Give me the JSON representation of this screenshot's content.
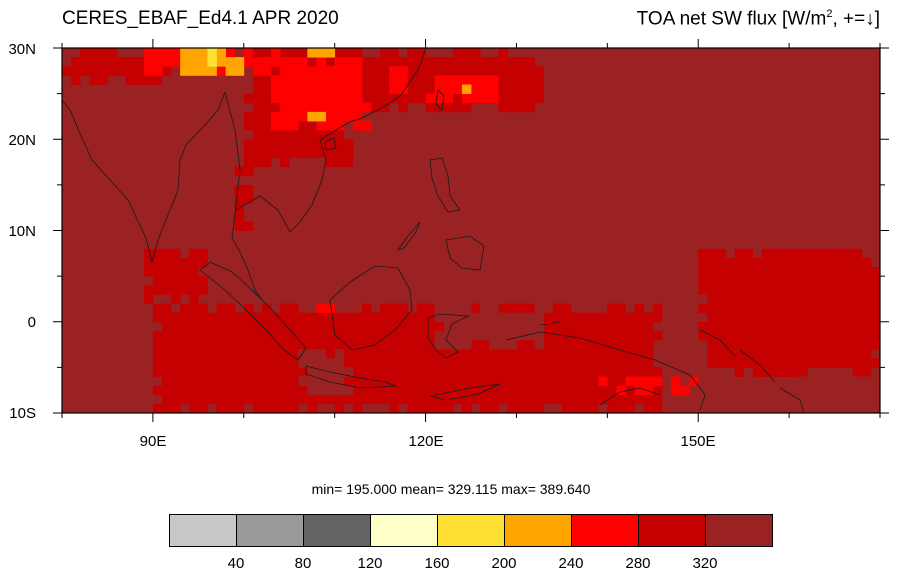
{
  "title_left": "CERES_EBAF_Ed4.1 APR 2020",
  "title_right": {
    "prefix": "TOA net SW flux [W/m",
    "sup": "2",
    "suffix": ", +=↓]"
  },
  "lat_labels": [
    "30N",
    "20N",
    "10N",
    "0",
    "10S"
  ],
  "lon_labels": [
    "90E",
    "120E",
    "150E"
  ],
  "stats": "min= 195.000  mean= 329.115  max= 389.640",
  "colorbar": {
    "colors": [
      "#c8c8c8",
      "#999999",
      "#646464",
      "#ffffc8",
      "#ffe033",
      "#ffa500",
      "#ff0000",
      "#c40000",
      "#9b2222"
    ],
    "labels": [
      "40",
      "80",
      "120",
      "160",
      "200",
      "240",
      "280",
      "320"
    ]
  },
  "map_data": {
    "lon_range": [
      80,
      170
    ],
    "lat_range": [
      -10,
      30
    ],
    "background_class": 8,
    "cell_deg": 1,
    "regions": [
      {
        "class": 7,
        "lon": [
          90,
          146
        ],
        "lat": [
          -10,
          2
        ]
      },
      {
        "class": 7,
        "lon": [
          100,
          112
        ],
        "lat": [
          17,
          30
        ]
      },
      {
        "class": 7,
        "lon": [
          112,
          133
        ],
        "lat": [
          23,
          30
        ]
      },
      {
        "class": 7,
        "lon": [
          80,
          92
        ],
        "lat": [
          26,
          30
        ]
      },
      {
        "class": 7,
        "lon": [
          150,
          170
        ],
        "lat": [
          -6,
          8
        ]
      },
      {
        "class": 7,
        "lon": [
          99,
          101
        ],
        "lat": [
          10,
          17
        ]
      },
      {
        "class": 7,
        "lon": [
          89,
          96
        ],
        "lat": [
          2,
          8
        ]
      },
      {
        "class": 8,
        "lon": [
          106,
          112
        ],
        "lat": [
          -8,
          -3
        ]
      },
      {
        "class": 8,
        "lon": [
          121,
          133
        ],
        "lat": [
          -3,
          2
        ]
      },
      {
        "class": 8,
        "lon": [
          80,
          86
        ],
        "lat": [
          -10,
          -6
        ]
      },
      {
        "class": 8,
        "lon": [
          159,
          170
        ],
        "lat": [
          -10,
          -6
        ]
      },
      {
        "class": 6,
        "lon": [
          103,
          114
        ],
        "lat": [
          21,
          29
        ]
      },
      {
        "class": 6,
        "lon": [
          115,
          119
        ],
        "lat": [
          24,
          28
        ]
      },
      {
        "class": 6,
        "lon": [
          120,
          128
        ],
        "lat": [
          24,
          27
        ]
      },
      {
        "class": 6,
        "lon": [
          89,
          104
        ],
        "lat": [
          27,
          30
        ]
      },
      {
        "class": 6,
        "lon": [
          139,
          150
        ],
        "lat": [
          -8,
          -6
        ]
      },
      {
        "class": 6,
        "lon": [
          108,
          110
        ],
        "lat": [
          1,
          3
        ]
      },
      {
        "class": 5,
        "lon": [
          93,
          100
        ],
        "lat": [
          27,
          30
        ]
      },
      {
        "class": 5,
        "lon": [
          105,
          110
        ],
        "lat": [
          29,
          30
        ]
      },
      {
        "class": 5,
        "lon": [
          107,
          109
        ],
        "lat": [
          22,
          23
        ]
      },
      {
        "class": 5,
        "lon": [
          124,
          126
        ],
        "lat": [
          25,
          26
        ]
      },
      {
        "class": 4,
        "lon": [
          96,
          97
        ],
        "lat": [
          28,
          30
        ]
      }
    ]
  }
}
